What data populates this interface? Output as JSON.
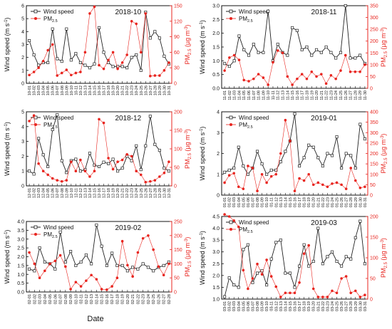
{
  "figure": {
    "shared_xlabel": "Date"
  },
  "legend": {
    "wind_label": "Wind speed",
    "pm_label": "PM",
    "pm_sub": "2.5"
  },
  "axis_text": {
    "left_label": "Wind speed (m s",
    "left_sup": "-1",
    "right_label": "PM",
    "right_sub": "2.5",
    "right_unit": " (µg m",
    "right_sup": "-3"
  },
  "colors": {
    "wind": "#222222",
    "pm": "#e8251f",
    "axis": "#111111",
    "pm_axis": "#e8251f"
  },
  "chart_data": [
    {
      "type": "line",
      "title": "2018-10",
      "x": [
        "10-01",
        "10-02",
        "10-03",
        "10-04",
        "10-05",
        "10-06",
        "10-07",
        "10-08",
        "10-09",
        "10-10",
        "10-11",
        "10-12",
        "10-13",
        "10-14",
        "10-15",
        "10-16",
        "10-17",
        "10-18",
        "10-19",
        "10-20",
        "10-21",
        "10-22",
        "10-23",
        "10-24",
        "10-25",
        "10-26",
        "10-27",
        "10-28",
        "10-29",
        "10-30",
        "10-31"
      ],
      "ylim": [
        0,
        6
      ],
      "yticks": [
        0,
        1,
        2,
        3,
        4,
        5,
        6
      ],
      "y2lim": [
        0,
        150
      ],
      "y2ticks": [
        0,
        30,
        60,
        90,
        120,
        150
      ],
      "series": [
        {
          "name": "Wind speed",
          "axis": "left",
          "values": [
            3.3,
            2.2,
            1.4,
            1.6,
            1.6,
            4.2,
            1.9,
            1.7,
            4.2,
            1.8,
            2.3,
            1.6,
            1.4,
            1.2,
            1.5,
            4.3,
            2.4,
            1.6,
            1.3,
            1.3,
            1.3,
            1.2,
            2.0,
            2.2,
            1.0,
            5.5,
            3.5,
            4.0,
            3.5,
            2.1,
            1.5
          ]
        },
        {
          "name": "PM2.5",
          "axis": "right",
          "values": [
            16,
            22,
            30,
            43,
            64,
            75,
            15,
            20,
            26,
            16,
            20,
            22,
            60,
            135,
            148,
            35,
            28,
            45,
            60,
            28,
            40,
            55,
            120,
            115,
            60,
            135,
            14,
            15,
            15,
            25,
            40
          ]
        }
      ]
    },
    {
      "type": "line",
      "title": "2018-11",
      "x": [
        "11-01",
        "11-02",
        "11-03",
        "11-04",
        "11-05",
        "11-06",
        "11-07",
        "11-08",
        "11-09",
        "11-10",
        "11-11",
        "11-12",
        "11-13",
        "11-14",
        "11-15",
        "11-16",
        "11-17",
        "11-18",
        "11-19",
        "11-20",
        "11-21",
        "11-22",
        "11-23",
        "11-24",
        "11-25",
        "11-26",
        "11-27",
        "11-28",
        "11-29",
        "11-30"
      ],
      "ylim": [
        0,
        3.0
      ],
      "yticks": [
        0,
        0.5,
        1.0,
        1.5,
        2.0,
        2.5,
        3.0
      ],
      "y2lim": [
        0,
        350
      ],
      "y2ticks": [
        0,
        50,
        100,
        150,
        200,
        250,
        300,
        350
      ],
      "series": [
        {
          "name": "Wind speed",
          "axis": "left",
          "values": [
            0.9,
            0.8,
            1.0,
            1.9,
            1.4,
            1.2,
            1.6,
            1.3,
            1.3,
            2.8,
            1.0,
            1.6,
            1.3,
            1.2,
            2.2,
            2.1,
            1.4,
            1.5,
            1.2,
            1.4,
            1.3,
            1.5,
            1.3,
            1.1,
            1.3,
            3.0,
            1.1,
            1.1,
            1.2,
            0.9
          ]
        },
        {
          "name": "PM2.5",
          "axis": "right",
          "values": [
            75,
            130,
            140,
            120,
            35,
            30,
            40,
            60,
            45,
            15,
            110,
            160,
            150,
            50,
            15,
            40,
            60,
            40,
            70,
            50,
            60,
            20,
            55,
            40,
            75,
            140,
            70,
            70,
            70,
            100
          ]
        }
      ]
    },
    {
      "type": "line",
      "title": "2018-12",
      "x": [
        "12-01",
        "12-02",
        "12-03",
        "12-04",
        "12-05",
        "12-06",
        "12-07",
        "12-08",
        "12-09",
        "12-10",
        "12-11",
        "12-12",
        "12-13",
        "12-14",
        "12-15",
        "12-16",
        "12-17",
        "12-18",
        "12-19",
        "12-20",
        "12-21",
        "12-22",
        "12-23",
        "12-24",
        "12-25",
        "12-26",
        "12-27",
        "12-28",
        "12-29",
        "12-30",
        "12-31"
      ],
      "ylim": [
        0,
        5
      ],
      "yticks": [
        0,
        1,
        2,
        3,
        4,
        5
      ],
      "y2lim": [
        0,
        200
      ],
      "y2ticks": [
        0,
        50,
        100,
        150,
        200
      ],
      "series": [
        {
          "name": "Wind speed",
          "axis": "left",
          "values": [
            1.0,
            0.8,
            3.2,
            2.1,
            1.3,
            3.8,
            4.8,
            1.7,
            0.9,
            1.7,
            1.8,
            1.0,
            1.1,
            2.2,
            1.4,
            1.3,
            1.6,
            1.5,
            1.8,
            1.0,
            1.2,
            2.0,
            1.7,
            2.7,
            1.1,
            2.7,
            4.7,
            2.8,
            2.4,
            1.2,
            1.0
          ]
        },
        {
          "name": "PM2.5",
          "axis": "right",
          "values": [
            175,
            190,
            60,
            40,
            30,
            20,
            15,
            12,
            15,
            65,
            40,
            70,
            40,
            25,
            40,
            180,
            170,
            75,
            45,
            65,
            70,
            85,
            80,
            40,
            30,
            10,
            12,
            15,
            25,
            35,
            65
          ]
        }
      ]
    },
    {
      "type": "line",
      "title": "2019-01",
      "x": [
        "01-01",
        "01-02",
        "01-03",
        "01-04",
        "01-05",
        "01-06",
        "01-07",
        "01-08",
        "01-09",
        "01-10",
        "01-11",
        "01-12",
        "01-13",
        "01-14",
        "01-15",
        "01-16",
        "01-17",
        "01-18",
        "01-19",
        "01-20",
        "01-21",
        "01-22",
        "01-23",
        "01-24",
        "01-25",
        "01-26",
        "01-27",
        "01-28",
        "01-29",
        "01-30",
        "01-31"
      ],
      "ylim": [
        0,
        4
      ],
      "yticks": [
        0,
        1,
        2,
        3,
        4
      ],
      "y2lim": [
        0,
        400
      ],
      "y2ticks": [
        0,
        50,
        100,
        150,
        200,
        250,
        300,
        350,
        400
      ],
      "series": [
        {
          "name": "Wind speed",
          "axis": "left",
          "values": [
            1.1,
            1.2,
            1.3,
            2.3,
            1.4,
            1.0,
            1.3,
            2.1,
            1.5,
            1.0,
            1.2,
            1.2,
            1.6,
            2.1,
            2.6,
            3.9,
            1.4,
            1.8,
            2.4,
            2.3,
            1.8,
            1.4,
            2.0,
            1.9,
            2.8,
            1.3,
            2.0,
            1.9,
            1.3,
            3.4,
            2.7
          ]
        },
        {
          "name": "PM2.5",
          "axis": "right",
          "values": [
            60,
            95,
            105,
            40,
            30,
            140,
            130,
            20,
            100,
            60,
            90,
            100,
            200,
            360,
            260,
            20,
            80,
            70,
            100,
            50,
            60,
            50,
            40,
            55,
            60,
            50,
            30,
            130,
            70,
            35,
            40
          ]
        }
      ]
    },
    {
      "type": "line",
      "title": "2019-02",
      "x": [
        "02-01",
        "02-02",
        "02-03",
        "02-04",
        "02-05",
        "02-06",
        "02-07",
        "02-08",
        "02-09",
        "02-10",
        "02-11",
        "02-12",
        "02-13",
        "02-14",
        "02-15",
        "02-16",
        "02-17",
        "02-18",
        "02-19",
        "02-20",
        "02-21",
        "02-22",
        "02-23",
        "02-24",
        "02-25",
        "02-26",
        "02-27",
        "02-28"
      ],
      "ylim": [
        0,
        4.0
      ],
      "yticks": [
        0,
        0.5,
        1.0,
        1.5,
        2.0,
        2.5,
        3.0,
        3.5,
        4.0
      ],
      "y2lim": [
        0,
        250
      ],
      "y2ticks": [
        0,
        50,
        100,
        150,
        200,
        250
      ],
      "series": [
        {
          "name": "Wind speed",
          "axis": "left",
          "values": [
            1.3,
            1.2,
            2.5,
            1.7,
            1.6,
            1.3,
            3.4,
            1.7,
            2.3,
            1.5,
            1.7,
            2.1,
            1.6,
            3.8,
            2.6,
            1.5,
            2.2,
            1.5,
            1.5,
            1.2,
            1.4,
            1.3,
            1.6,
            1.4,
            1.2,
            1.4,
            1.5,
            1.7
          ]
        },
        {
          "name": "PM2.5",
          "axis": "right",
          "values": [
            140,
            100,
            50,
            75,
            100,
            110,
            130,
            90,
            10,
            35,
            20,
            40,
            60,
            45,
            10,
            8,
            20,
            50,
            180,
            95,
            55,
            140,
            190,
            200,
            150,
            90,
            60,
            100
          ]
        }
      ]
    },
    {
      "type": "line",
      "title": "2019-03",
      "x": [
        "03-01",
        "03-02",
        "03-03",
        "03-04",
        "03-05",
        "03-06",
        "03-07",
        "03-08",
        "03-09",
        "03-10",
        "03-11",
        "03-12",
        "03-13",
        "03-14",
        "03-15",
        "03-16",
        "03-17",
        "03-18",
        "03-19",
        "03-20",
        "03-21",
        "03-22",
        "03-23",
        "03-24",
        "03-25",
        "03-26",
        "03-27",
        "03-28",
        "03-29",
        "03-30",
        "03-31"
      ],
      "ylim": [
        1.0,
        4.5
      ],
      "yticks": [
        1.0,
        1.5,
        2.0,
        2.5,
        3.0,
        3.5,
        4.0,
        4.5
      ],
      "y2lim": [
        0,
        200
      ],
      "y2ticks": [
        0,
        50,
        100,
        150,
        200
      ],
      "series": [
        {
          "name": "Wind speed",
          "axis": "left",
          "values": [
            1.1,
            1.9,
            1.6,
            1.5,
            3.1,
            3.3,
            1.7,
            2.1,
            2.2,
            1.6,
            2.7,
            3.4,
            3.5,
            2.1,
            2.1,
            1.5,
            2.4,
            3.3,
            2.4,
            2.6,
            4.0,
            2.5,
            2.8,
            3.0,
            2.6,
            2.4,
            2.8,
            2.7,
            3.6,
            4.3,
            2.5
          ]
        },
        {
          "name": "PM2.5",
          "axis": "right",
          "values": [
            205,
            200,
            190,
            175,
            70,
            25,
            50,
            85,
            60,
            95,
            55,
            30,
            5,
            15,
            15,
            15,
            40,
            110,
            130,
            25,
            5,
            5,
            5,
            20,
            15,
            50,
            55,
            15,
            20,
            5,
            10
          ]
        }
      ]
    }
  ]
}
